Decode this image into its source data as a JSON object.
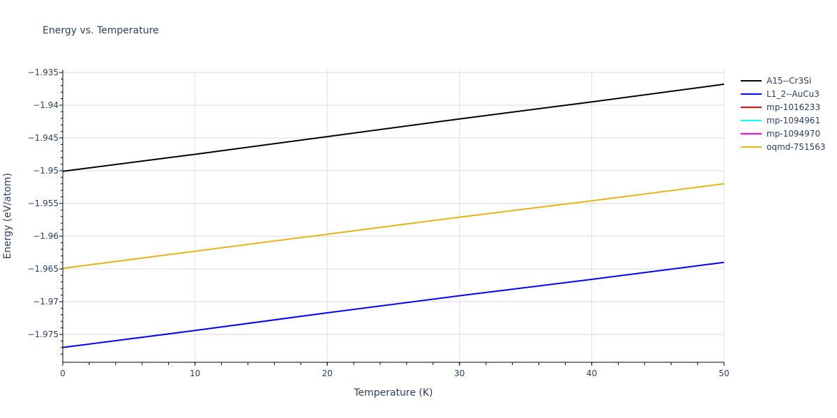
{
  "title": "Energy vs. Temperature",
  "chart_data": {
    "type": "line",
    "title": "Energy vs. Temperature",
    "xlabel": "Temperature (K)",
    "ylabel": "Energy (eV/atom)",
    "xlim": [
      0,
      50
    ],
    "ylim": [
      -1.9785,
      -1.9346
    ],
    "x_ticks": [
      0,
      10,
      20,
      30,
      40,
      50
    ],
    "y_ticks": [
      -1.935,
      -1.94,
      -1.945,
      -1.95,
      -1.955,
      -1.96,
      -1.965,
      -1.97,
      -1.975
    ],
    "y_tick_labels": [
      "−1.935",
      "−1.94",
      "−1.945",
      "−1.95",
      "−1.955",
      "−1.96",
      "−1.965",
      "−1.97",
      "−1.975"
    ],
    "x_tick_labels": [
      "0",
      "10",
      "20",
      "30",
      "40",
      "50"
    ],
    "grid": true,
    "legend_position": "right",
    "x": [
      0,
      10,
      20,
      30,
      40,
      50
    ],
    "series": [
      {
        "name": "A15--Cr3Si",
        "color": "#000000",
        "values": [
          -1.9501,
          -1.9475,
          -1.9448,
          -1.9421,
          -1.9395,
          -1.9368
        ]
      },
      {
        "name": "L1_2--AuCu3",
        "color": "#0000ff",
        "values": [
          -1.977,
          -1.9744,
          -1.9717,
          -1.9691,
          -1.9666,
          -1.964
        ]
      },
      {
        "name": "mp-1016233",
        "color": "#ff0000",
        "values": []
      },
      {
        "name": "mp-1094961",
        "color": "#00ffff",
        "values": []
      },
      {
        "name": "mp-1094970",
        "color": "#ff00ff",
        "values": []
      },
      {
        "name": "oqmd-751563",
        "color": "#e6b319",
        "values": [
          -1.9649,
          -1.9623,
          -1.9597,
          -1.9571,
          -1.9546,
          -1.952
        ]
      }
    ]
  }
}
